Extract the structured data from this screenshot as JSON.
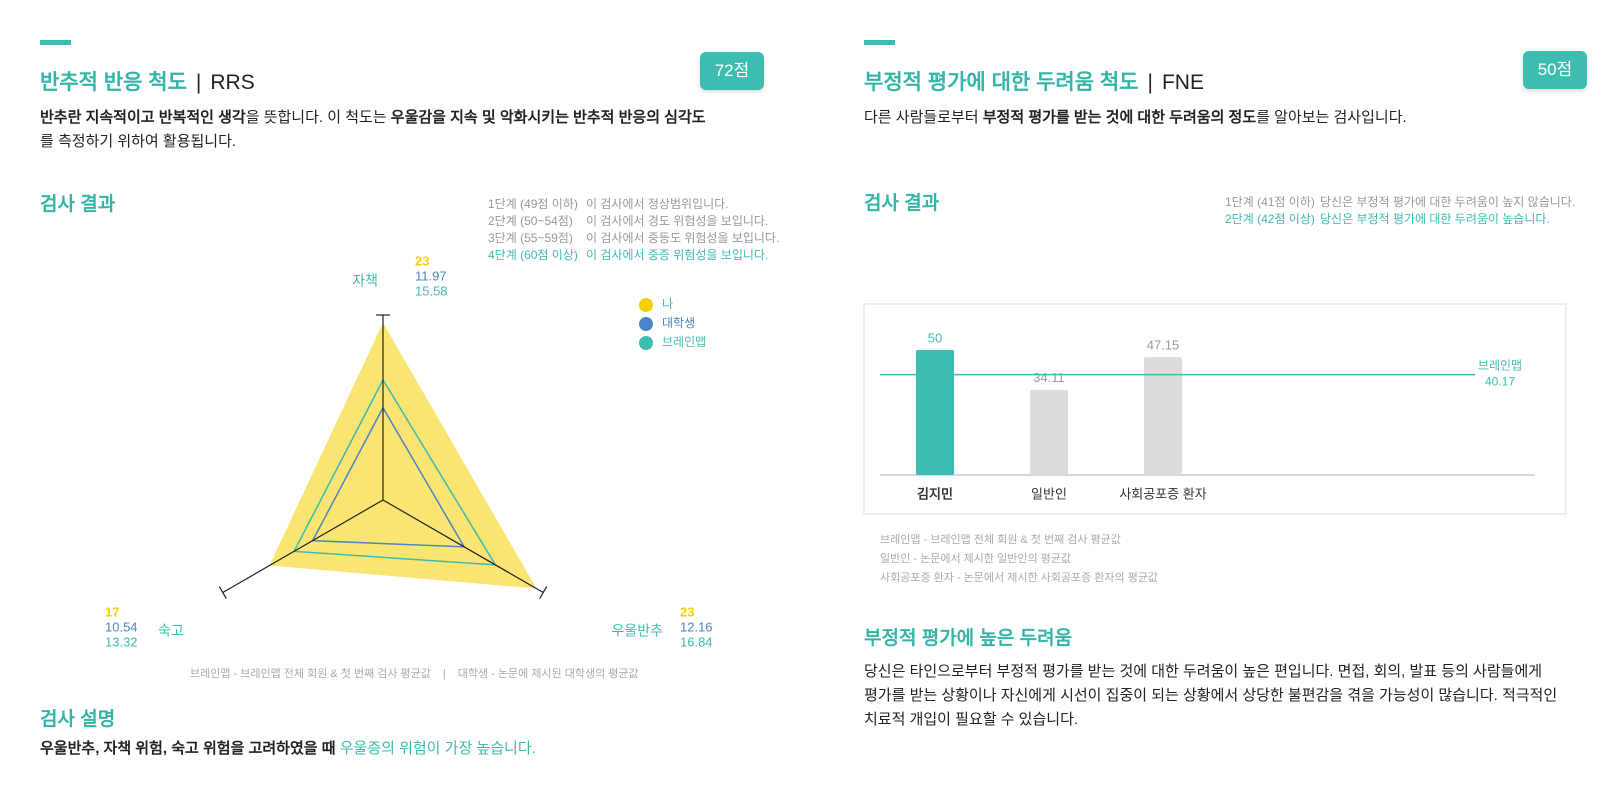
{
  "panels": [
    {
      "title": "반추적 반응 척도",
      "separator": "|",
      "code": "RRS",
      "score": "72점",
      "description": [
        [
          {
            "text": "반추란 지속적이고 반복적인 생각",
            "style": "bold"
          },
          {
            "text": "을 뜻합니다. 이 척도는 "
          },
          {
            "text": "우울감을 지속 및 악화시키는 반추적 반응의 심각도",
            "style": "bold"
          }
        ],
        [
          {
            "text": "를 측정하기 위하여 활용됩니다."
          }
        ]
      ],
      "section_result": "검사 결과",
      "stages": [
        {
          "label": "1단계 (49점 이하)",
          "text": "이 검사에서 정상범위입니다.",
          "highlight": false
        },
        {
          "label": "2단계 (50~54점)",
          "text": "이 검사에서 경도 위험성을 보입니다.",
          "highlight": false
        },
        {
          "label": "3단계 (55~59점)",
          "text": "이 검사에서 중등도 위험성을 보입니다.",
          "highlight": false
        },
        {
          "label": "4단계 (60점 이상)",
          "text": "이 검사에서 중증 위험성을 보입니다.",
          "highlight": true
        }
      ],
      "footnote": {
        "items": [
          "브레인맵 - 브레인맵 전체 회원 & 첫 번째 검사 평균값",
          "대학생 - 논문에 제시된 대학생의 평균값"
        ],
        "separator": "|"
      },
      "explanation_title": "검사 설명",
      "explanation": [
        [
          {
            "text": "우울반추, 자책 위험, 숙고 위험을 고려하였을 때 ",
            "style": "bold"
          },
          {
            "text": "우울증의 위험이 가장 높습니다.",
            "style": "accent"
          }
        ]
      ]
    },
    {
      "title": "부정적 평가에 대한 두려움 척도",
      "separator": "|",
      "code": "FNE",
      "score": "50점",
      "description": [
        [
          {
            "text": "다른 사람들로부터 "
          },
          {
            "text": "부정적 평가를 받는 것에 대한 두려움의 정도",
            "style": "bold"
          },
          {
            "text": "를 알아보는 검사입니다."
          }
        ]
      ],
      "section_result": "검사 결과",
      "stages": [
        {
          "label": "1단계 (41점 이하)",
          "text": "당신은 부정적 평가에 대한 두려움이 높지 않습니다.",
          "highlight": false
        },
        {
          "label": "2단계 (42점 이상)",
          "text": "당신은 부정적 평가에 대한 두려움이 높습니다.",
          "highlight": true
        }
      ],
      "notes": [
        "브레인맵 - 브레인맵 전체 회원 & 첫 번째 검사 평균값",
        "일반인 - 논문에서 제시한 일반인의 평균값",
        "사회공포증 환자 - 논문에서 제시한 사회공포증 환자의 평균값"
      ],
      "result_title": "부정적 평가에 높은 두려움",
      "result_text": [
        [
          {
            "text": "당신은 타인으로부터 부정적 평가를 받는 것에 대한 두려움이 높은 편입니다. 면접, 회의, 발표 등의 사람들에게"
          }
        ],
        [
          {
            "text": "평가를 받는 상황이나 자신에게 시선이 집중이 되는 상황에서 상당한 불편감을 겪을 가능성이 많습니다. 적극적인"
          }
        ],
        [
          {
            "text": "치료적 개입이 필요할 수 있습니다."
          }
        ]
      ]
    }
  ],
  "chart_data": [
    {
      "type": "radar",
      "categories": [
        "자책",
        "우울반추",
        "숙고"
      ],
      "rlim": [
        0,
        24
      ],
      "legend": "upper right",
      "series": [
        {
          "name": "나",
          "color": "#f5d000",
          "mode": "area",
          "values": [
            23,
            23,
            17
          ]
        },
        {
          "name": "대학생",
          "color": "#4a86c5",
          "mode": "line",
          "values": [
            11.97,
            12.16,
            10.54
          ]
        },
        {
          "name": "브레인맵",
          "color": "#3dbcb0",
          "mode": "line",
          "values": [
            15.58,
            16.84,
            13.32
          ]
        }
      ]
    },
    {
      "type": "bar",
      "categories": [
        "김지민",
        "일반인",
        "사회공포증 환자"
      ],
      "values": [
        50,
        34.11,
        47.15
      ],
      "colors": [
        "#3dbcb0",
        "#dcdcdc",
        "#dcdcdc"
      ],
      "value_label_colors": [
        "#3dbcb0",
        "#999999",
        "#999999"
      ],
      "highlight_index": 0,
      "ylim": [
        0,
        60
      ],
      "reference": {
        "name": "브레인맵",
        "value": 40.17,
        "color": "#3dbcb0"
      }
    }
  ]
}
